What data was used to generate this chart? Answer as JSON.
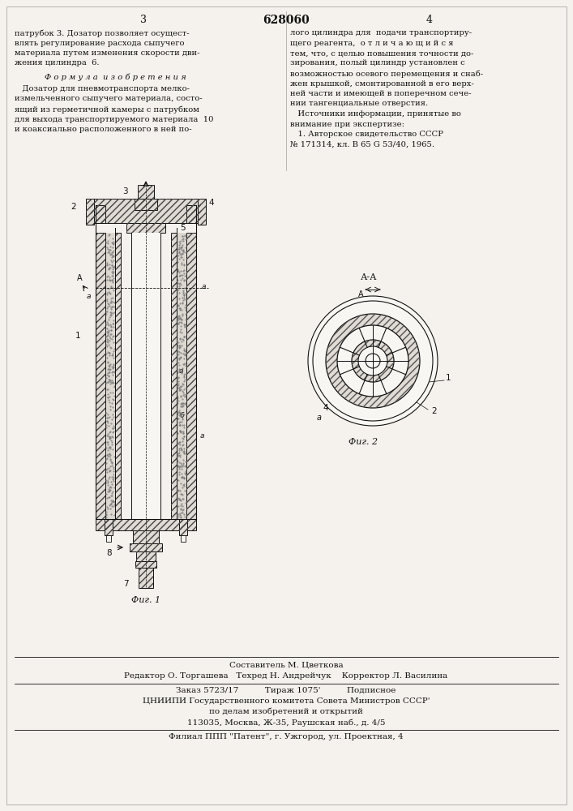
{
  "bg_color": "#f5f2ed",
  "page_color": "#f5f2ed",
  "title_patent": "628060",
  "page_left_num": "3",
  "page_right_num": "4",
  "left_col_text": [
    "патрубок 3. Дозатор позволяет осущест-",
    "влять регулирование расхода сыпучего",
    "материала путем изменения скорости дви-",
    "жения цилиндра  6."
  ],
  "formula_header": "Ф о р м у л а  и з о б р е т е н и я",
  "formula_text": [
    "   Дозатор для пневмотранспорта мелко-",
    "измельченного сыпучего материала, состо-",
    "ящий из герметичной камеры с патрубком",
    "для выхода транспортируемого материала  10",
    "и коаксиально расположенного в ней по-"
  ],
  "right_col_text": [
    "лого цилиндра для  подачи транспортиру-",
    "щего реагента,  о т л и ч а ю щ и й с я",
    "тем, что, с целью повышения точности до-",
    "зирования, полый цилиндр установлен с",
    "возможностью осевого перемещения и снаб-",
    "жен крышкой, смонтированной в его верх-",
    "ней части и имеющей в поперечном сече-",
    "нии тангенциальные отверстия.",
    "   Источники информации, принятые во",
    "внимание при экспертизе:",
    "   1. Авторское свидетельство СССР",
    "№ 171314, кл. В 65 G 53/40, 1965."
  ],
  "fig1_caption": "Фиг. 1",
  "fig2_caption": "Фиг. 2",
  "fig2_label": "А-А",
  "footer_line1": "Составитель М. Цветкова",
  "footer_line2": "Редактор О. Торгашева   Техред Н. Андрейчук    Корректор Л. Василина",
  "footer_line3": "Заказ 5723/17          Тираж 1075'          Подписное",
  "footer_line4": "ЦНИИПИ Государственного комитета Совета Министров СССР'",
  "footer_line5": "по делам изобретений и открытий",
  "footer_line6": "113035, Москва, Ж-35, Раушская наб., д. 4/5",
  "footer_line7": "Филиал ППП \"Патент\", г. Ужгород, ул. Проектная, 4",
  "text_color": "#111111",
  "line_color": "#111111"
}
